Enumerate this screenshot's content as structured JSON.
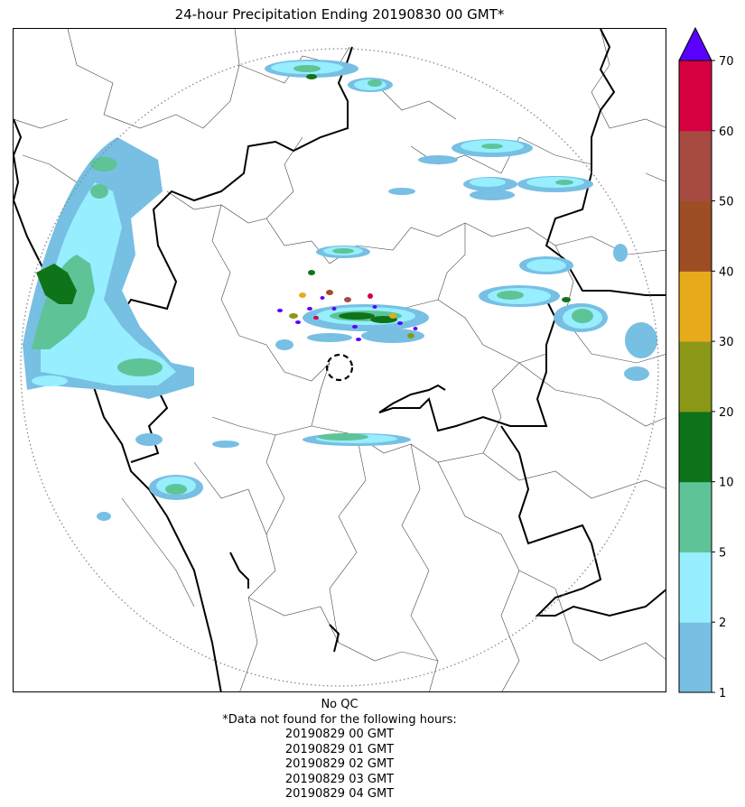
{
  "title": "24-hour Precipitation Ending 20190830 00 GMT*",
  "qc_label": "No QC",
  "missing_note": "*Data not found for the following hours:",
  "missing_hours": [
    "20190829 00 GMT",
    "20190829 01 GMT",
    "20190829 02 GMT",
    "20190829 03 GMT",
    "20190829 04 GMT"
  ],
  "colorbar": {
    "units": "",
    "extend": "max",
    "overflow_color": "#5a00ff",
    "levels": [
      1,
      2,
      5,
      10,
      20,
      30,
      40,
      50,
      60,
      70
    ],
    "colors": [
      "#77bfe3",
      "#97eefe",
      "#5ec498",
      "#0f7419",
      "#8a9717",
      "#e7aa1b",
      "#9e4e25",
      "#a74b42",
      "#d70041"
    ],
    "tick_labels": [
      "1",
      "2",
      "5",
      "10",
      "20",
      "30",
      "40",
      "50",
      "60",
      "70"
    ]
  },
  "map": {
    "range_ring": "dotted",
    "radar_site": "dashed circle",
    "coast_line": "bold black",
    "state_borders": "bold black",
    "district_borders": "thin gray"
  }
}
